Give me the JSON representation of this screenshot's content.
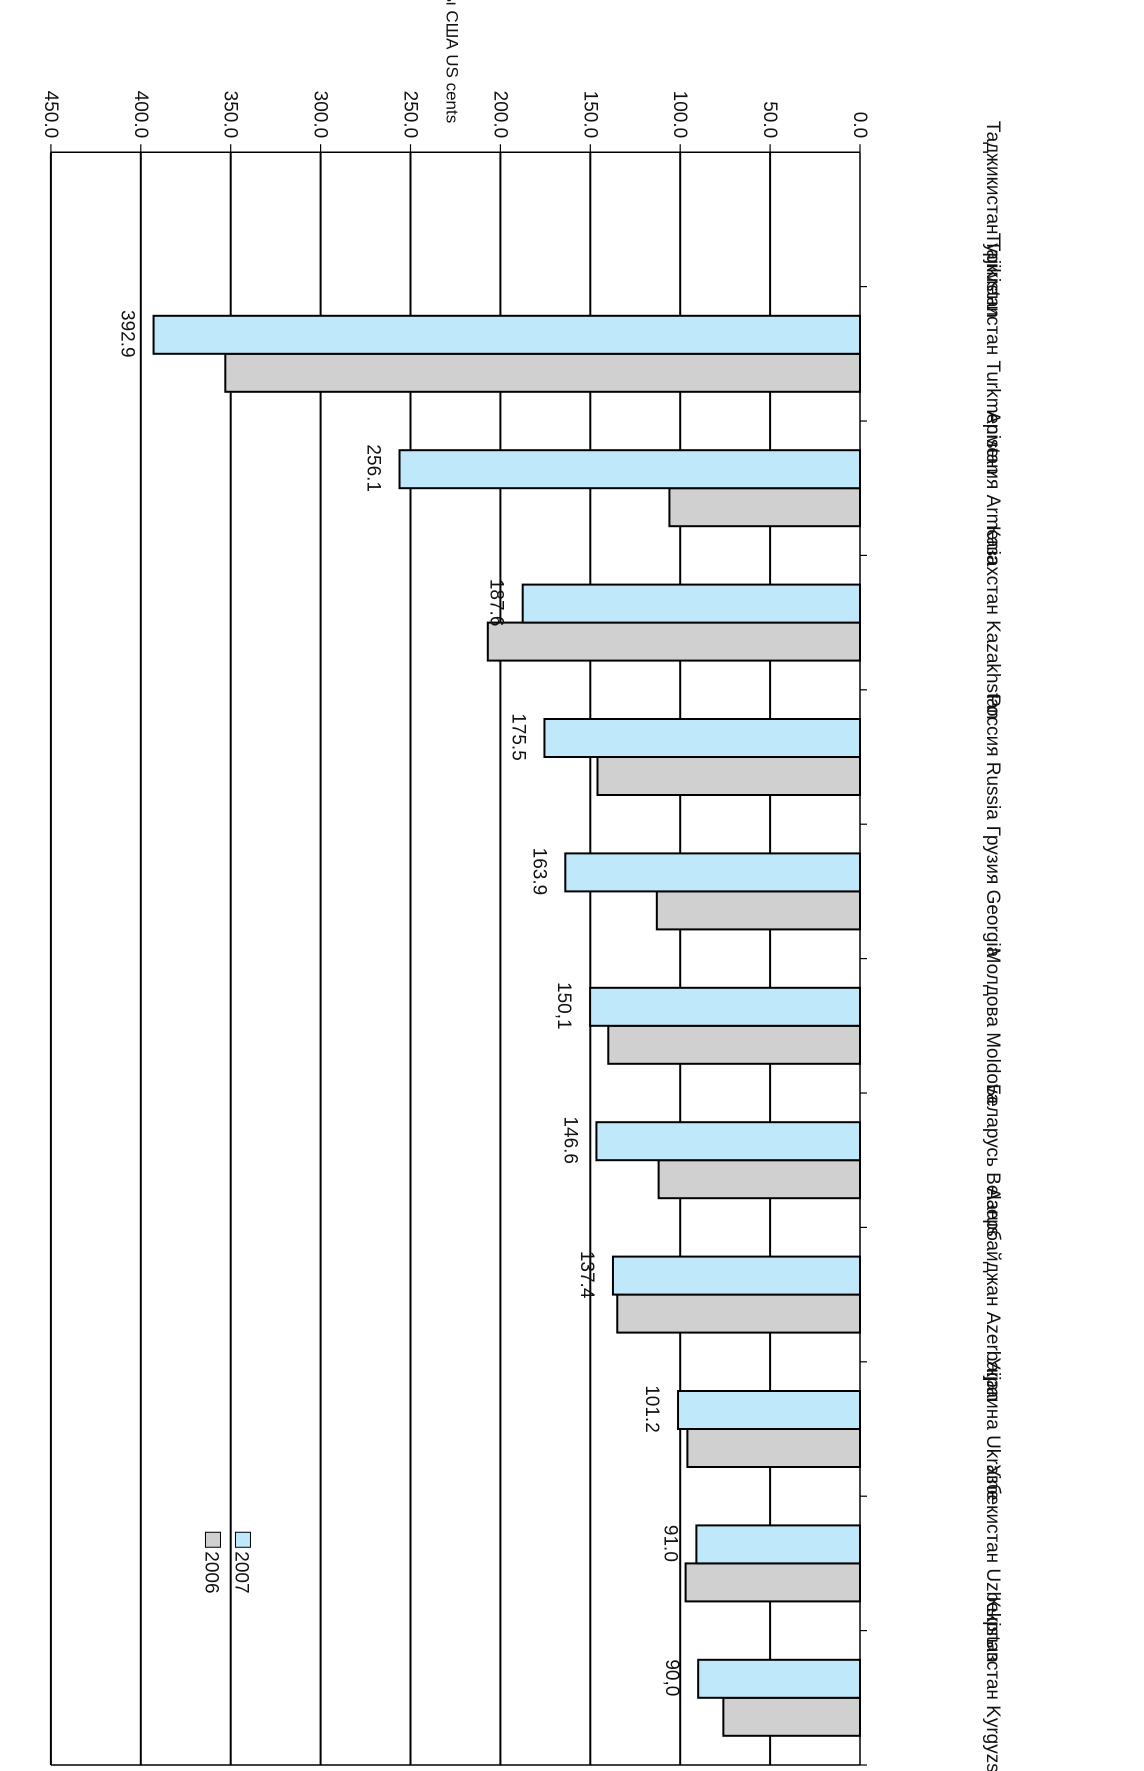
{
  "chart_data": {
    "type": "bar",
    "orientation": "horizontal",
    "rendering": "rotated-180",
    "ylabel": "центы США   US cents",
    "ylim": [
      0,
      450
    ],
    "yticks": [
      "0.0",
      "50.0",
      "100.0",
      "150.0",
      "200.0",
      "250.0",
      "300.0",
      "350.0",
      "400.0",
      "450.0"
    ],
    "grid": true,
    "legend_position": "inside, near category Uzbekistan",
    "categories": [
      "Кыргызстан Kyrgyzstan",
      "Узбекистан Uzbekistan",
      "Украина Ukraine",
      "Азербайджан  Azerbaijan",
      "Беларусь Belarus",
      "Молдова Moldova",
      "Грузия Georgia",
      "Россия Russia",
      "Казахстан Kazakhstan",
      "Армения Armenia",
      "Туркменистан Turkmenistan",
      "Таджикистан Tajikistan"
    ],
    "series": [
      {
        "name": "2006",
        "color": "#d0d0d0",
        "values": [
          76,
          97,
          96,
          135,
          112,
          140,
          113,
          146,
          207,
          106,
          353,
          null
        ]
      },
      {
        "name": "2007",
        "color": "#bfe8fb",
        "values": [
          90.0,
          91.0,
          101.2,
          137.4,
          146.6,
          150.1,
          163.9,
          175.5,
          187.6,
          256.1,
          392.9,
          null
        ]
      }
    ],
    "data_labels": [
      "90,0",
      "91.0",
      "101.2",
      "137.4",
      "146.6",
      "150,1",
      "163.9",
      "175.5",
      "187.6",
      "256.1",
      "392.9",
      ""
    ]
  }
}
